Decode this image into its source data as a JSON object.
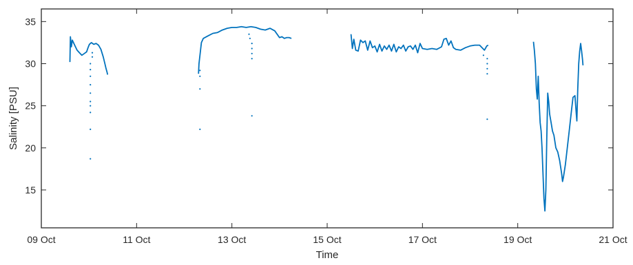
{
  "chart_data": {
    "type": "line",
    "title": "",
    "xlabel": "Time",
    "ylabel": "Salinity [PSU]",
    "xlim": [
      "09 Oct",
      "21 Oct"
    ],
    "ylim": [
      10.5,
      36.5
    ],
    "x_ticks": [
      "09 Oct",
      "11 Oct",
      "13 Oct",
      "15 Oct",
      "17 Oct",
      "19 Oct",
      "21 Oct"
    ],
    "y_ticks": [
      15,
      20,
      25,
      30,
      35
    ],
    "grid": false,
    "line_color": "#0072BD",
    "series": [
      {
        "name": "",
        "segments": [
          [
            [
              "09 Oct 14:24",
              30.2
            ],
            [
              "09 Oct 14:38",
              33.2
            ],
            [
              "09 Oct 15:07",
              32.0
            ],
            [
              "09 Oct 15:36",
              32.8
            ],
            [
              "09 Oct 16:48",
              32.2
            ],
            [
              "09 Oct 18:00",
              31.6
            ],
            [
              "09 Oct 19:12",
              31.3
            ],
            [
              "09 Oct 20:24",
              31.0
            ],
            [
              "09 Oct 21:36",
              31.2
            ],
            [
              "09 Oct 22:48",
              31.4
            ],
            [
              "09 Oct 23:31",
              31.9
            ],
            [
              "10 Oct 00:14",
              32.3
            ],
            [
              "10 Oct 01:12",
              32.5
            ],
            [
              "10 Oct 02:24",
              32.3
            ],
            [
              "10 Oct 03:36",
              32.4
            ],
            [
              "10 Oct 04:48",
              32.2
            ],
            [
              "10 Oct 06:00",
              31.7
            ],
            [
              "10 Oct 07:12",
              30.8
            ],
            [
              "10 Oct 07:55",
              30.1
            ],
            [
              "10 Oct 08:38",
              29.4
            ],
            [
              "10 Oct 09:07",
              29.0
            ],
            [
              "10 Oct 09:22",
              28.7
            ]
          ],
          [
            [
              "12 Oct 07:12",
              28.8
            ],
            [
              "12 Oct 07:26",
              30.0
            ],
            [
              "12 Oct 07:55",
              31.0
            ],
            [
              "12 Oct 08:38",
              32.5
            ],
            [
              "12 Oct 09:36",
              33.0
            ],
            [
              "12 Oct 12:00",
              33.3
            ],
            [
              "12 Oct 14:24",
              33.6
            ],
            [
              "12 Oct 16:48",
              33.7
            ],
            [
              "12 Oct 19:12",
              34.0
            ],
            [
              "12 Oct 21:36",
              34.2
            ],
            [
              "13 Oct 00:00",
              34.3
            ],
            [
              "13 Oct 02:24",
              34.3
            ],
            [
              "13 Oct 04:48",
              34.4
            ],
            [
              "13 Oct 07:12",
              34.3
            ],
            [
              "13 Oct 09:36",
              34.4
            ],
            [
              "13 Oct 12:00",
              34.3
            ],
            [
              "13 Oct 14:24",
              34.1
            ],
            [
              "13 Oct 16:48",
              34.0
            ],
            [
              "13 Oct 19:12",
              34.2
            ],
            [
              "13 Oct 21:36",
              33.9
            ],
            [
              "14 Oct 00:00",
              33.1
            ],
            [
              "14 Oct 01:12",
              33.2
            ],
            [
              "14 Oct 02:24",
              33.0
            ],
            [
              "14 Oct 03:36",
              33.1
            ],
            [
              "14 Oct 04:48",
              33.1
            ],
            [
              "14 Oct 06:00",
              33.0
            ]
          ],
          [
            [
              "15 Oct 12:00",
              33.5
            ],
            [
              "15 Oct 12:43",
              31.8
            ],
            [
              "15 Oct 13:26",
              32.9
            ],
            [
              "15 Oct 14:24",
              31.6
            ],
            [
              "15 Oct 15:36",
              31.5
            ],
            [
              "15 Oct 16:48",
              32.8
            ],
            [
              "15 Oct 18:00",
              32.5
            ],
            [
              "15 Oct 19:12",
              32.7
            ],
            [
              "15 Oct 20:24",
              31.6
            ],
            [
              "15 Oct 21:36",
              32.7
            ],
            [
              "15 Oct 22:48",
              31.9
            ],
            [
              "16 Oct 00:00",
              32.1
            ],
            [
              "16 Oct 01:12",
              31.4
            ],
            [
              "16 Oct 02:24",
              32.3
            ],
            [
              "16 Oct 03:36",
              31.5
            ],
            [
              "16 Oct 04:48",
              32.1
            ],
            [
              "16 Oct 06:00",
              31.7
            ],
            [
              "16 Oct 07:12",
              32.2
            ],
            [
              "16 Oct 08:24",
              31.5
            ],
            [
              "16 Oct 09:36",
              32.3
            ],
            [
              "16 Oct 10:48",
              31.4
            ],
            [
              "16 Oct 12:00",
              32.0
            ],
            [
              "16 Oct 13:12",
              31.8
            ],
            [
              "16 Oct 14:24",
              32.2
            ],
            [
              "16 Oct 15:36",
              31.5
            ],
            [
              "16 Oct 16:48",
              32.0
            ],
            [
              "16 Oct 18:00",
              32.1
            ],
            [
              "16 Oct 19:12",
              31.7
            ],
            [
              "16 Oct 20:24",
              32.2
            ],
            [
              "16 Oct 21:36",
              31.3
            ],
            [
              "16 Oct 22:48",
              32.4
            ],
            [
              "17 Oct 00:00",
              31.8
            ],
            [
              "17 Oct 02:24",
              31.7
            ],
            [
              "17 Oct 04:48",
              31.8
            ],
            [
              "17 Oct 07:12",
              31.7
            ],
            [
              "17 Oct 09:36",
              32.0
            ],
            [
              "17 Oct 10:48",
              32.9
            ],
            [
              "17 Oct 12:00",
              33.0
            ],
            [
              "17 Oct 13:12",
              32.2
            ],
            [
              "17 Oct 14:24",
              32.7
            ],
            [
              "17 Oct 15:36",
              31.9
            ],
            [
              "17 Oct 16:48",
              31.7
            ],
            [
              "17 Oct 19:12",
              31.6
            ],
            [
              "17 Oct 21:36",
              31.9
            ],
            [
              "18 Oct 00:00",
              32.1
            ],
            [
              "18 Oct 02:24",
              32.2
            ],
            [
              "18 Oct 04:48",
              32.2
            ],
            [
              "18 Oct 06:00",
              31.9
            ],
            [
              "18 Oct 07:12",
              31.6
            ],
            [
              "18 Oct 08:24",
              32.1
            ],
            [
              "18 Oct 09:07",
              32.2
            ]
          ],
          [
            [
              "19 Oct 07:55",
              32.6
            ],
            [
              "19 Oct 08:24",
              31.5
            ],
            [
              "19 Oct 08:53",
              30.0
            ],
            [
              "19 Oct 09:22",
              27.0
            ],
            [
              "19 Oct 09:50",
              25.8
            ],
            [
              "19 Oct 10:19",
              28.5
            ],
            [
              "19 Oct 10:48",
              25.3
            ],
            [
              "19 Oct 11:17",
              23.0
            ],
            [
              "19 Oct 11:46",
              22.0
            ],
            [
              "19 Oct 12:14",
              20.0
            ],
            [
              "19 Oct 12:43",
              17.0
            ],
            [
              "19 Oct 13:12",
              14.0
            ],
            [
              "19 Oct 13:41",
              12.5
            ],
            [
              "19 Oct 14:10",
              15.0
            ],
            [
              "19 Oct 14:38",
              21.0
            ],
            [
              "19 Oct 15:07",
              26.5
            ],
            [
              "19 Oct 15:36",
              25.5
            ],
            [
              "19 Oct 16:05",
              24.0
            ],
            [
              "19 Oct 16:48",
              23.0
            ],
            [
              "19 Oct 17:31",
              22.0
            ],
            [
              "19 Oct 18:14",
              21.5
            ],
            [
              "19 Oct 19:12",
              20.0
            ],
            [
              "19 Oct 20:10",
              19.5
            ],
            [
              "19 Oct 21:07",
              18.5
            ],
            [
              "19 Oct 22:05",
              17.0
            ],
            [
              "19 Oct 22:34",
              16.0
            ],
            [
              "19 Oct 23:02",
              16.5
            ],
            [
              "20 Oct 00:00",
              18.0
            ],
            [
              "20 Oct 00:58",
              20.0
            ],
            [
              "20 Oct 01:55",
              22.0
            ],
            [
              "20 Oct 02:53",
              24.0
            ],
            [
              "20 Oct 03:50",
              26.0
            ],
            [
              "20 Oct 04:48",
              26.2
            ],
            [
              "20 Oct 05:31",
              24.0
            ],
            [
              "20 Oct 05:46",
              23.2
            ],
            [
              "20 Oct 06:14",
              27.0
            ],
            [
              "20 Oct 06:43",
              30.0
            ],
            [
              "20 Oct 07:12",
              31.5
            ],
            [
              "20 Oct 07:41",
              32.4
            ],
            [
              "20 Oct 08:10",
              31.5
            ],
            [
              "20 Oct 08:38",
              30.5
            ],
            [
              "20 Oct 08:53",
              29.8
            ]
          ]
        ],
        "outliers": [
          [
            "10 Oct 00:43",
            18.7
          ],
          [
            "10 Oct 00:43",
            22.2
          ],
          [
            "10 Oct 00:43",
            24.2
          ],
          [
            "10 Oct 00:43",
            25.0
          ],
          [
            "10 Oct 00:43",
            25.5
          ],
          [
            "10 Oct 00:43",
            26.5
          ],
          [
            "10 Oct 00:43",
            27.5
          ],
          [
            "10 Oct 00:43",
            28.5
          ],
          [
            "10 Oct 00:43",
            29.3
          ],
          [
            "10 Oct 00:43",
            30.0
          ],
          [
            "10 Oct 01:41",
            30.8
          ],
          [
            "10 Oct 01:41",
            31.3
          ],
          [
            "12 Oct 07:55",
            22.2
          ],
          [
            "12 Oct 07:55",
            27.0
          ],
          [
            "12 Oct 07:55",
            28.5
          ],
          [
            "12 Oct 07:55",
            29.2
          ],
          [
            "13 Oct 10:05",
            23.8
          ],
          [
            "13 Oct 10:05",
            30.6
          ],
          [
            "13 Oct 10:05",
            31.2
          ],
          [
            "13 Oct 10:05",
            31.8
          ],
          [
            "13 Oct 10:05",
            32.4
          ],
          [
            "13 Oct 09:07",
            33.0
          ],
          [
            "13 Oct 08:38",
            33.5
          ],
          [
            "18 Oct 06:43",
            31.0
          ],
          [
            "18 Oct 08:38",
            23.4
          ],
          [
            "18 Oct 08:38",
            28.8
          ],
          [
            "18 Oct 08:38",
            29.4
          ],
          [
            "18 Oct 08:38",
            30.0
          ],
          [
            "18 Oct 08:38",
            30.6
          ]
        ]
      }
    ]
  }
}
